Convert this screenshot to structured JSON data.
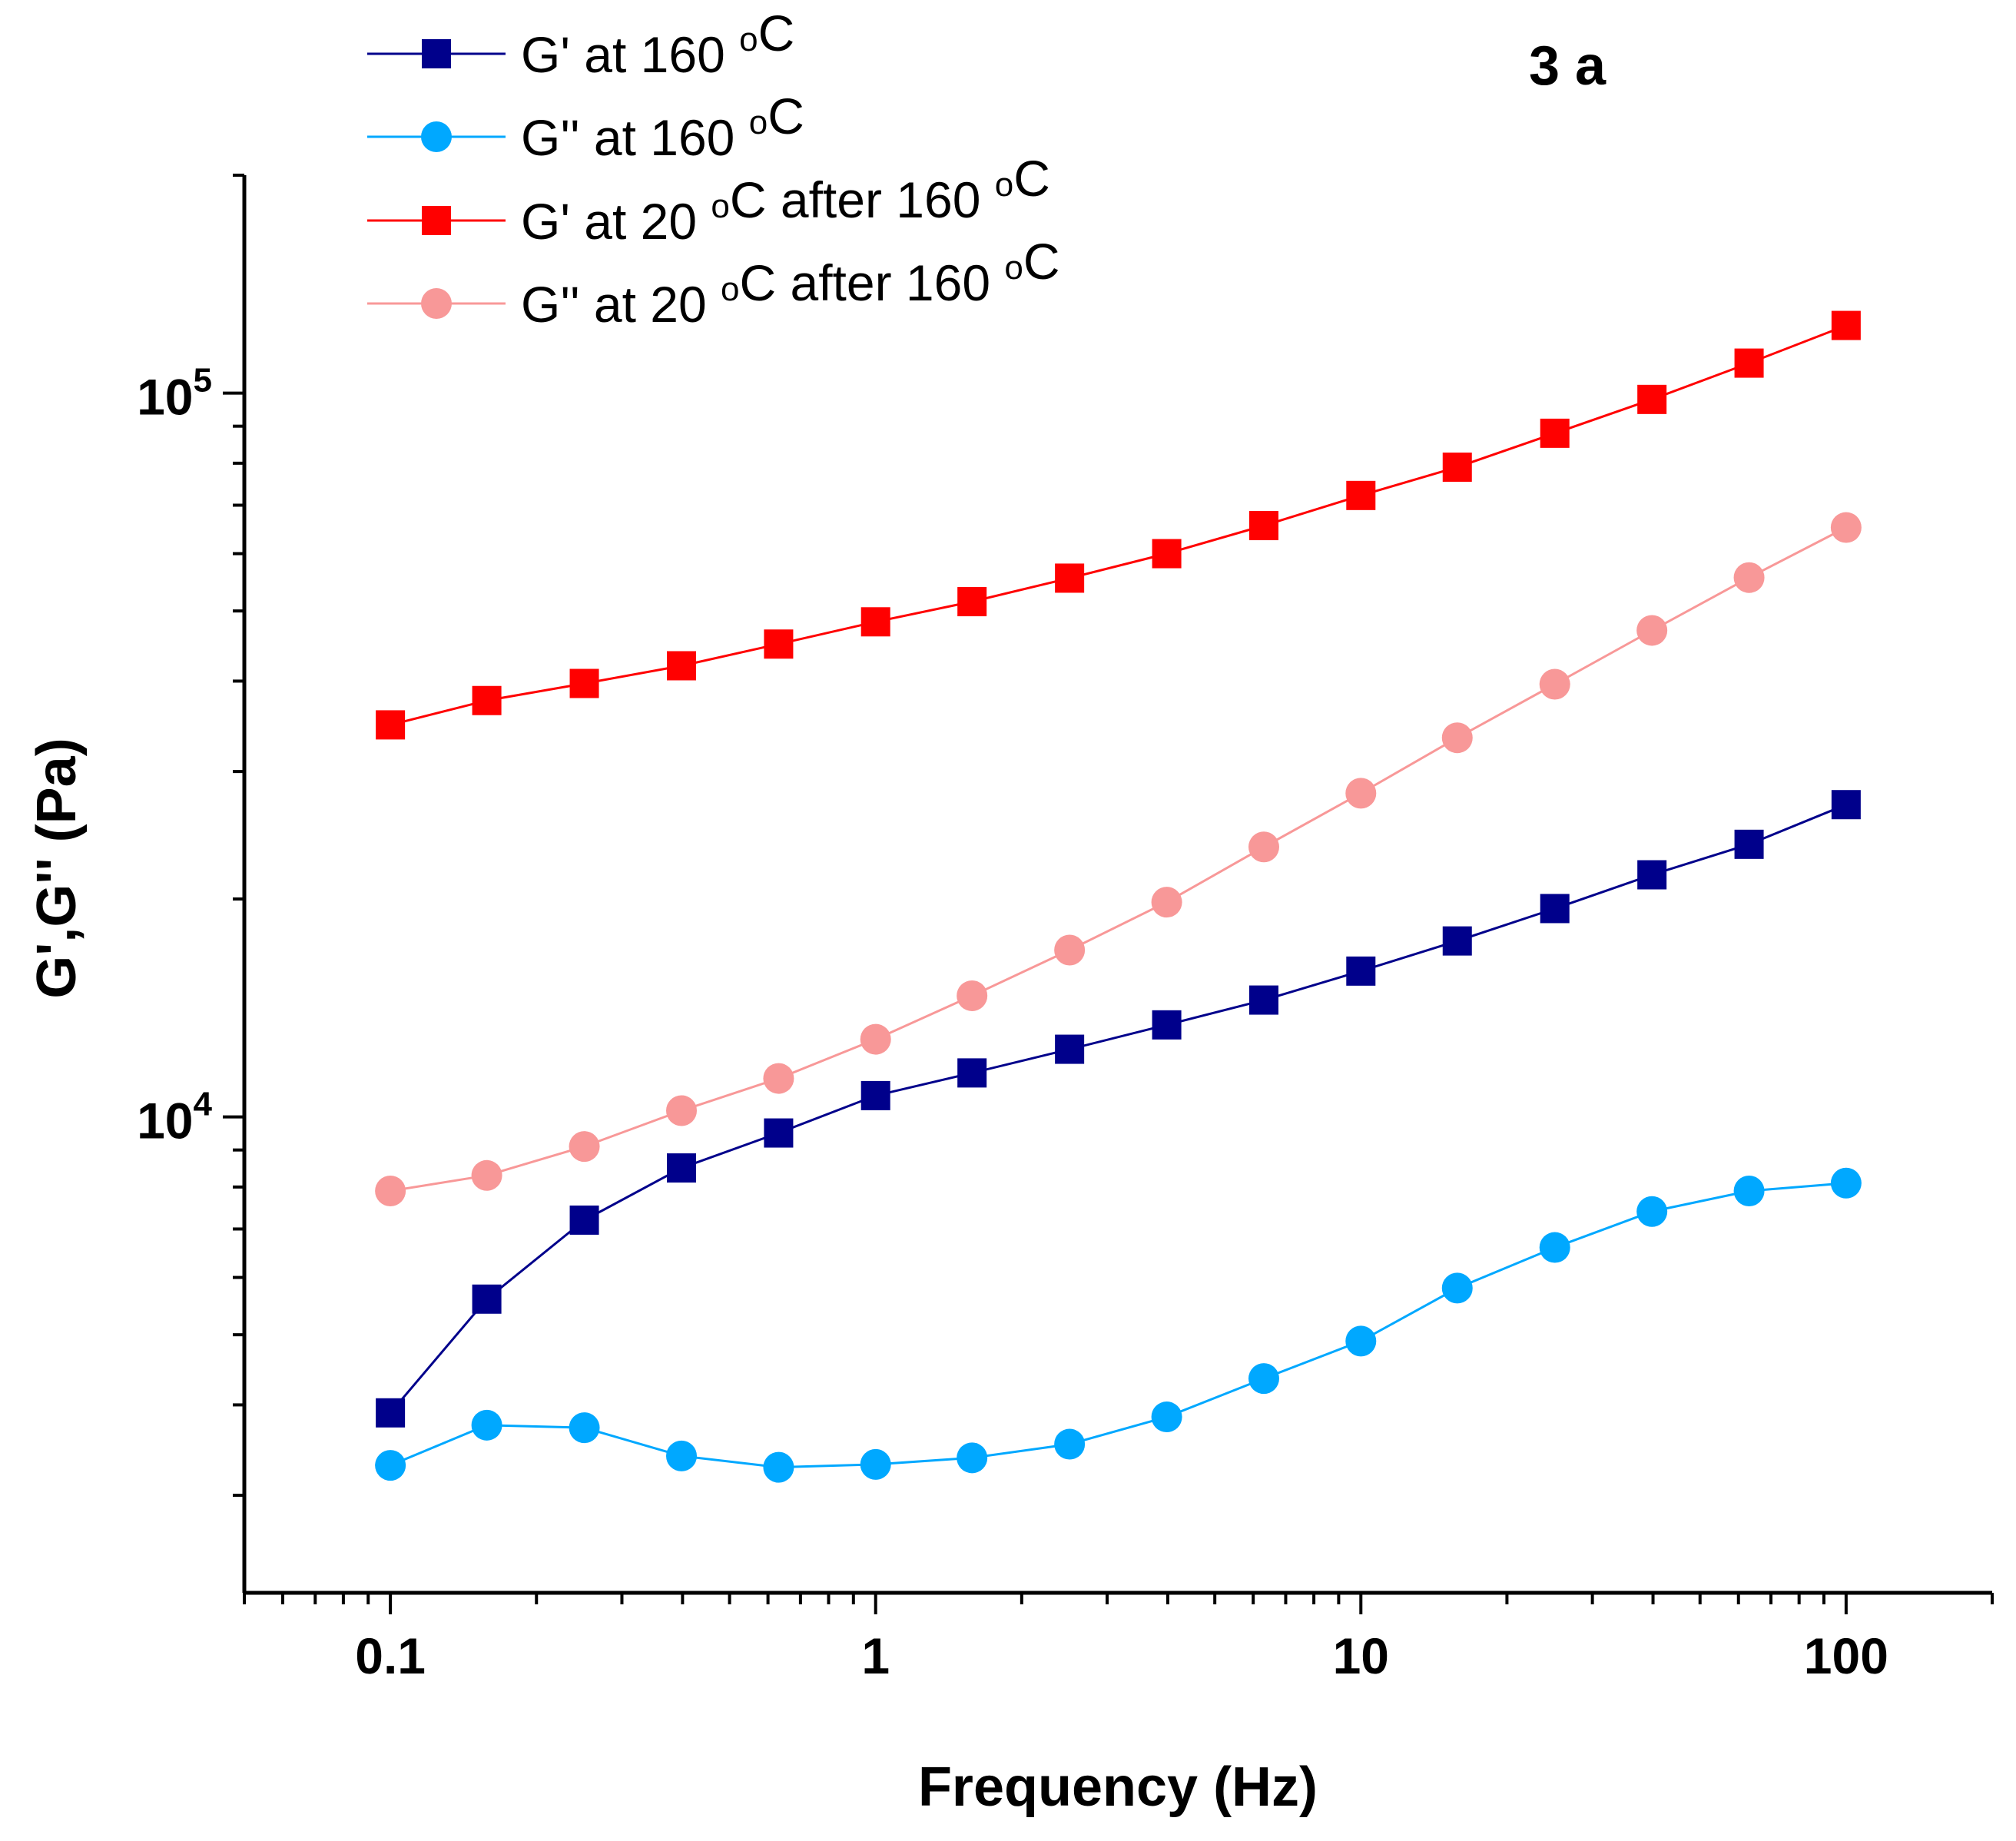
{
  "chart_data": {
    "type": "line",
    "title": "3 a",
    "xlabel": "Frequency (Hz)",
    "ylabel": "G',G'' (Pa)",
    "xscale": "log",
    "yscale": "log",
    "xlim": [
      0.05,
      200
    ],
    "ylim": [
      2200,
      200000
    ],
    "x_ticks": [
      {
        "value": 0.1,
        "label": "0.1"
      },
      {
        "value": 1,
        "label": "1"
      },
      {
        "value": 10,
        "label": "10"
      },
      {
        "value": 100,
        "label": "100"
      }
    ],
    "y_ticks": [
      {
        "value": 10000,
        "base": "10",
        "exp": "4"
      },
      {
        "value": 100000,
        "base": "10",
        "exp": "5"
      }
    ],
    "legend_position": "top-left",
    "x": [
      0.1,
      0.158,
      0.251,
      0.398,
      0.631,
      1,
      1.58,
      2.51,
      3.98,
      6.31,
      10,
      15.8,
      25.1,
      39.8,
      63.1,
      100
    ],
    "series": [
      {
        "name": "G' at 160 °C",
        "label_parts": [
          "G' at 160 ",
          "o",
          "C"
        ],
        "marker": "square",
        "color": "#00008B",
        "values": [
          3900,
          5600,
          7200,
          8500,
          9500,
          10700,
          11500,
          12400,
          13400,
          14500,
          15900,
          17500,
          19400,
          21600,
          23800,
          27000
        ]
      },
      {
        "name": "G'' at 160 °C",
        "label_parts": [
          "G'' at 160 ",
          "o",
          "C"
        ],
        "marker": "circle",
        "color": "#00A8FF",
        "values": [
          3300,
          3750,
          3720,
          3400,
          3280,
          3310,
          3380,
          3530,
          3850,
          4350,
          4900,
          5800,
          6600,
          7400,
          7900,
          8100
        ]
      },
      {
        "name": "G' at 20 °C after 160 °C",
        "label_parts": [
          "G' at 20 ",
          "o",
          "C after 160 ",
          "o",
          "C"
        ],
        "marker": "square",
        "color": "#FF0000",
        "values": [
          34800,
          37600,
          39700,
          42000,
          45000,
          48300,
          51500,
          55500,
          60000,
          65600,
          72200,
          79000,
          88000,
          98000,
          110000,
          124000
        ]
      },
      {
        "name": "G'' at 20 °C after 160 °C",
        "label_parts": [
          "G'' at 20 ",
          "o",
          "C after 160 ",
          "o",
          "C"
        ],
        "marker": "circle",
        "color": "#F89898",
        "values": [
          7900,
          8300,
          9100,
          10200,
          11300,
          12800,
          14700,
          17000,
          19800,
          23600,
          28000,
          33400,
          39600,
          47000,
          55600,
          65200
        ]
      }
    ]
  }
}
